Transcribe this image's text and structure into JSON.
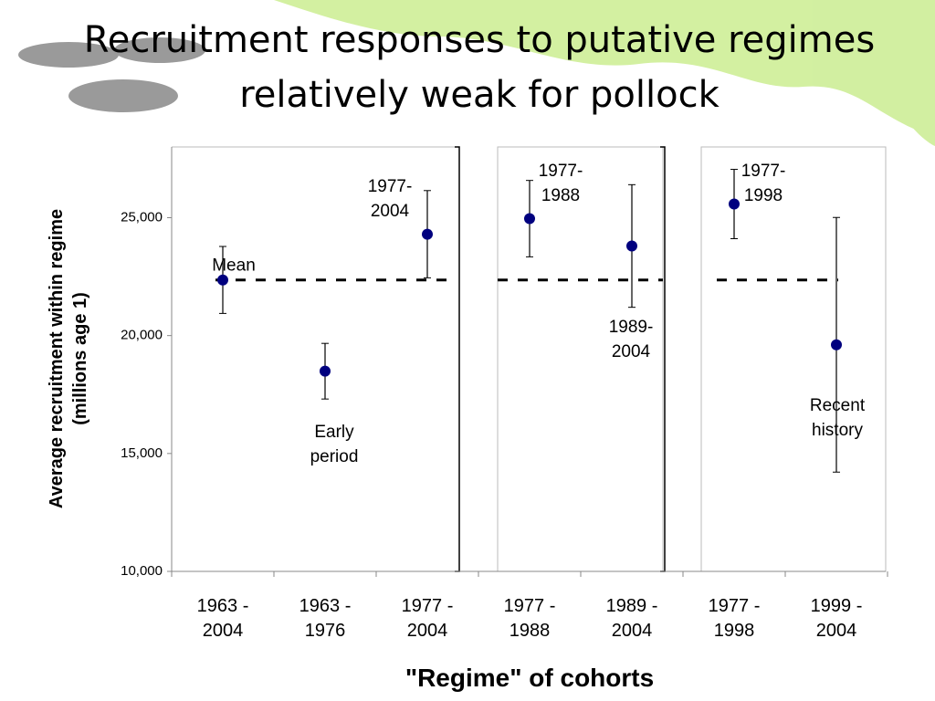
{
  "chart_data": {
    "type": "errorbar",
    "title": "Recruitment responses to putative regimes relatively weak for pollock",
    "ylabel": [
      "Average recruitment within regime",
      "(millions age 1)"
    ],
    "xlabel": "\"Regime\" of cohorts",
    "categories": [
      "1963 - 2004",
      "1963 - 1976",
      "1977 - 2004",
      "1977 - 1988",
      "1989 - 2004",
      "1977 - 1998",
      "1999 - 2004"
    ],
    "values": [
      22360,
      18490,
      24300,
      24960,
      23800,
      25580,
      19610
    ],
    "errors": [
      1420,
      1180,
      1850,
      1620,
      2600,
      1470,
      5400
    ],
    "color": "#00007f",
    "mean": 22360,
    "annotations": [
      "Mean",
      "1977- 2004",
      "Early period",
      "1977- 1988",
      "1989- 2004",
      "1977- 1998",
      "Recent history"
    ],
    "ylim": [
      10000,
      28000
    ],
    "yticks": [
      {
        "value": 10000,
        "label": "10,000"
      },
      {
        "value": 15000,
        "label": "15,000"
      },
      {
        "value": 20000,
        "label": "20,000"
      },
      {
        "value": 25000,
        "label": "25,000"
      }
    ]
  }
}
